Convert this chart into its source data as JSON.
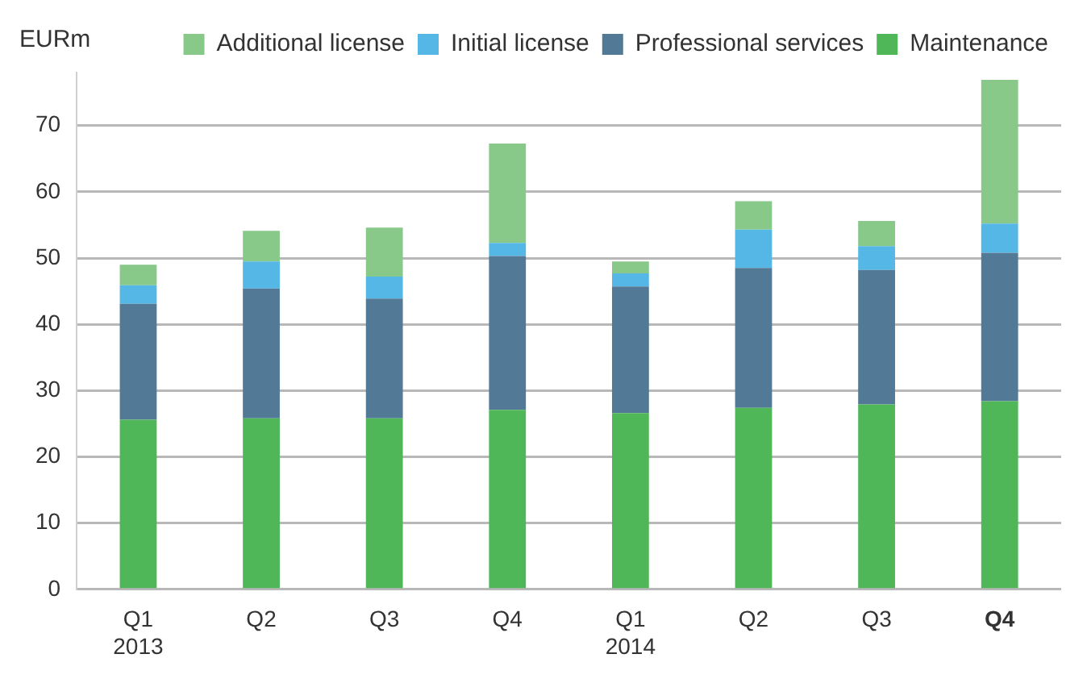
{
  "chart_data": {
    "type": "bar",
    "stacked": true,
    "ylabel": "EURm",
    "categories": [
      "Q1\n2013",
      "Q2",
      "Q3",
      "Q4",
      "Q1\n2014",
      "Q2",
      "Q3",
      "Q4"
    ],
    "series": [
      {
        "name": "Maintenance",
        "color": "#4fb757",
        "values": [
          25.6,
          25.8,
          25.8,
          27.1,
          26.6,
          27.4,
          27.9,
          28.4
        ]
      },
      {
        "name": "Professional services",
        "color": "#527a96",
        "values": [
          17.5,
          19.6,
          18.1,
          23.2,
          19.1,
          21.1,
          20.3,
          22.4
        ]
      },
      {
        "name": "Initial license",
        "color": "#55b7e6",
        "values": [
          2.8,
          4.1,
          3.3,
          2.0,
          2.0,
          5.8,
          3.6,
          4.4
        ]
      },
      {
        "name": "Additional license",
        "color": "#88c98a",
        "values": [
          3.1,
          4.6,
          7.4,
          15.0,
          1.8,
          4.3,
          3.8,
          21.7
        ]
      }
    ],
    "ylim": [
      0,
      78
    ],
    "yticks": [
      0,
      10,
      20,
      30,
      40,
      50,
      60,
      70
    ],
    "grid": "y",
    "legend": "top right"
  }
}
